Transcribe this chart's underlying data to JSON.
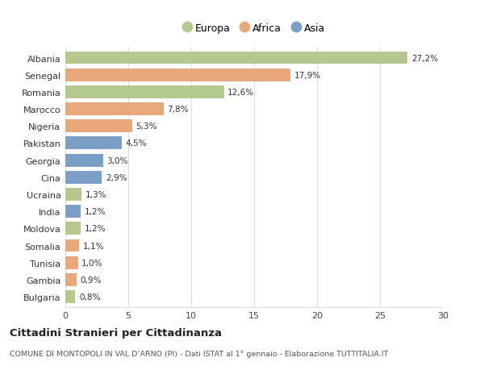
{
  "countries": [
    "Albania",
    "Senegal",
    "Romania",
    "Marocco",
    "Nigeria",
    "Pakistan",
    "Georgia",
    "Cina",
    "Ucraina",
    "India",
    "Moldova",
    "Somalia",
    "Tunisia",
    "Gambia",
    "Bulgaria"
  ],
  "values": [
    27.2,
    17.9,
    12.6,
    7.8,
    5.3,
    4.5,
    3.0,
    2.9,
    1.3,
    1.2,
    1.2,
    1.1,
    1.0,
    0.9,
    0.8
  ],
  "labels": [
    "27,2%",
    "17,9%",
    "12,6%",
    "7,8%",
    "5,3%",
    "4,5%",
    "3,0%",
    "2,9%",
    "1,3%",
    "1,2%",
    "1,2%",
    "1,1%",
    "1,0%",
    "0,9%",
    "0,8%"
  ],
  "colors": [
    "#b5c98e",
    "#e8a87c",
    "#b5c98e",
    "#e8a87c",
    "#e8a87c",
    "#7b9fc7",
    "#7b9fc7",
    "#7b9fc7",
    "#b5c98e",
    "#7b9fc7",
    "#b5c98e",
    "#e8a87c",
    "#e8a87c",
    "#e8a87c",
    "#b5c98e"
  ],
  "legend_labels": [
    "Europa",
    "Africa",
    "Asia"
  ],
  "legend_colors": [
    "#b5c98e",
    "#e8a87c",
    "#7b9fc7"
  ],
  "xlim": [
    0,
    30
  ],
  "xticks": [
    0,
    5,
    10,
    15,
    20,
    25,
    30
  ],
  "title": "Cittadini Stranieri per Cittadinanza",
  "subtitle": "COMUNE DI MONTOPOLI IN VAL D’ARNO (PI) - Dati ISTAT al 1° gennaio - Elaborazione TUTTITALIA.IT",
  "bg_color": "#ffffff",
  "grid_color": "#dddddd"
}
